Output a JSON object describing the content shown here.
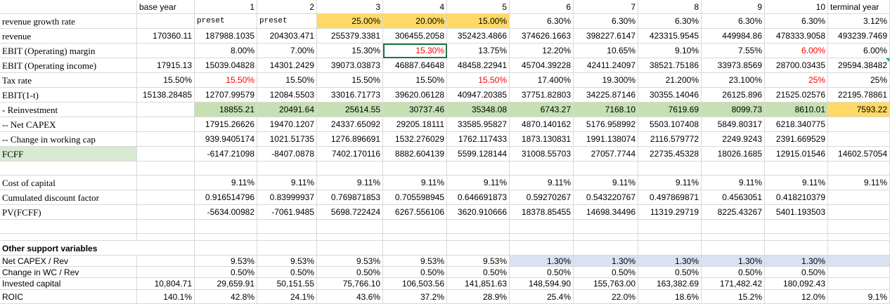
{
  "header": {
    "base_year": "base year",
    "years": [
      "1",
      "2",
      "3",
      "4",
      "5",
      "6",
      "7",
      "8",
      "9",
      "10"
    ],
    "terminal": "terminal year"
  },
  "rows": {
    "growth": {
      "label": "revenue growth rate",
      "values": [
        "",
        "preset",
        "preset",
        "25.00%",
        "20.00%",
        "15.00%",
        "6.30%",
        "6.30%",
        "6.30%",
        "6.30%",
        "6.30%",
        "3.12%"
      ]
    },
    "revenue": {
      "label": "revenue",
      "values": [
        "170360.11",
        "187988.1035",
        "204303.471",
        "255379.3381",
        "306455.2058",
        "352423.4866",
        "374626.1663",
        "398227.6147",
        "423315.9545",
        "449984.86",
        "478333.9058",
        "493239.7469"
      ]
    },
    "ebit_margin": {
      "label": "EBIT (Operating) margin",
      "values": [
        "",
        "8.00%",
        "7.00%",
        "15.30%",
        "15.30%",
        "13.75%",
        "12.20%",
        "10.65%",
        "9.10%",
        "7.55%",
        "6.00%",
        "6.00%"
      ]
    },
    "ebit": {
      "label": "EBIT (Operating income)",
      "values": [
        "17915.13",
        "15039.04828",
        "14301.2429",
        "39073.03873",
        "46887.64648",
        "48458.22941",
        "45704.39228",
        "42411.24097",
        "38521.75186",
        "33973.8569",
        "28700.03435",
        "29594.38482"
      ]
    },
    "tax": {
      "label": "Tax rate",
      "values": [
        "15.50%",
        "15.50%",
        "15.50%",
        "15.50%",
        "15.50%",
        "15.50%",
        "17.400%",
        "19.300%",
        "21.200%",
        "23.100%",
        "25%",
        "25%"
      ]
    },
    "ebit_after_tax": {
      "label": "EBIT(1-t)",
      "values": [
        "15138.28485",
        "12707.99579",
        "12084.5503",
        "33016.71773",
        "39620.06128",
        "40947.20385",
        "37751.82803",
        "34225.87146",
        "30355.14046",
        "26125.896",
        "21525.02576",
        "22195.78861"
      ]
    },
    "reinvestment": {
      "label": " - Reinvestment",
      "values": [
        "",
        "18855.21",
        "20491.64",
        "25614.55",
        "30737.46",
        "35348.08",
        "6743.27",
        "7168.10",
        "7619.69",
        "8099.73",
        "8610.01",
        "7593.22"
      ]
    },
    "net_capex": {
      "label": " -- Net CAPEX",
      "values": [
        "",
        "17915.26626",
        "19470.1207",
        "24337.65092",
        "29205.18111",
        "33585.95827",
        "4870.140162",
        "5176.958992",
        "5503.107408",
        "5849.80317",
        "6218.340775",
        ""
      ]
    },
    "wc_change": {
      "label": " -- Change in working cap",
      "values": [
        "",
        "939.9405174",
        "1021.51735",
        "1276.896691",
        "1532.276029",
        "1762.117433",
        "1873.130831",
        "1991.138074",
        "2116.579772",
        "2249.9243",
        "2391.669529",
        ""
      ]
    },
    "fcff": {
      "label": "FCFF",
      "values": [
        "",
        "-6147.21098",
        "-8407.0878",
        "7402.170116",
        "8882.604139",
        "5599.128144",
        "31008.55703",
        "27057.7744",
        "22735.45328",
        "18026.1685",
        "12915.01546",
        "14602.57054"
      ]
    },
    "cost_of_capital": {
      "label": "Cost of capital",
      "values": [
        "",
        "9.11%",
        "9.11%",
        "9.11%",
        "9.11%",
        "9.11%",
        "9.11%",
        "9.11%",
        "9.11%",
        "9.11%",
        "9.11%",
        "9.11%"
      ]
    },
    "discount_factor": {
      "label": "Cumulated discount factor",
      "values": [
        "",
        "0.916514796",
        "0.83999937",
        "0.769871853",
        "0.705598945",
        "0.646691873",
        "0.59270267",
        "0.543220767",
        "0.497869871",
        "0.4563051",
        "0.418210379",
        ""
      ]
    },
    "pv_fcff": {
      "label": "PV(FCFF)",
      "values": [
        "",
        "-5634.00982",
        "-7061.9485",
        "5698.722424",
        "6267.556106",
        "3620.910666",
        "18378.85455",
        "14698.34496",
        "11319.29719",
        "8225.43267",
        "5401.193503",
        ""
      ]
    },
    "other_header": {
      "label": "Other support variables"
    },
    "capex_rev": {
      "label": "Net CAPEX / Rev",
      "values": [
        "",
        "9.53%",
        "9.53%",
        "9.53%",
        "9.53%",
        "9.53%",
        "1.30%",
        "1.30%",
        "1.30%",
        "1.30%",
        "1.30%",
        ""
      ]
    },
    "wc_rev": {
      "label": "Change in WC / Rev",
      "values": [
        "",
        "0.50%",
        "0.50%",
        "0.50%",
        "0.50%",
        "0.50%",
        "0.50%",
        "0.50%",
        "0.50%",
        "0.50%",
        "0.50%",
        ""
      ]
    },
    "invested_capital": {
      "label": "Invested capital",
      "values": [
        "10,804.71",
        "29,659.91",
        "50,151.55",
        "75,766.10",
        "106,503.56",
        "141,851.63",
        "148,594.90",
        "155,763.00",
        "163,382.69",
        "171,482.42",
        "180,092.43",
        ""
      ]
    },
    "roic": {
      "label": "ROIC",
      "values": [
        "140.1%",
        "42.8%",
        "24.1%",
        "43.6%",
        "37.2%",
        "28.9%",
        "25.4%",
        "22.0%",
        "18.6%",
        "15.2%",
        "12.0%",
        "9.1%"
      ]
    }
  },
  "colors": {
    "yellow": "#ffd966",
    "green": "#c6e0b4",
    "blue": "#d9e1f2",
    "red_text": "#ff0000",
    "selection": "#217346"
  }
}
